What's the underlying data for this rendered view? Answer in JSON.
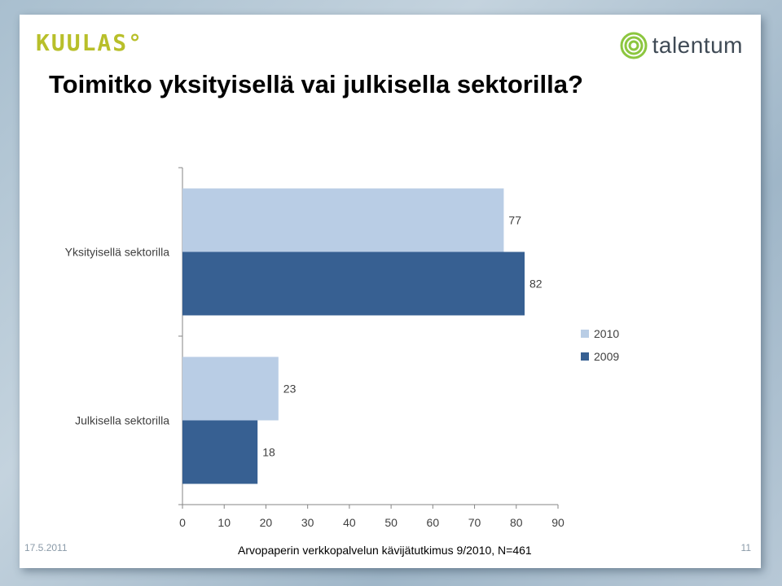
{
  "header": {
    "brand_left": "KUULAS°",
    "brand_right": "talentum"
  },
  "slide": {
    "title": "Toimitko yksityisellä vai julkisella sektorilla?"
  },
  "chart_data": {
    "type": "bar",
    "orientation": "horizontal",
    "categories": [
      "Yksityisellä sektorilla",
      "Julkisella sektorilla"
    ],
    "series": [
      {
        "name": "2010",
        "values": [
          77,
          23
        ],
        "color": "#b9cde5"
      },
      {
        "name": "2009",
        "values": [
          82,
          18
        ],
        "color": "#376092"
      }
    ],
    "xlim": [
      0,
      90
    ],
    "xticks": [
      0,
      10,
      20,
      30,
      40,
      50,
      60,
      70,
      80,
      90
    ],
    "grid": false,
    "legend_position": "right"
  },
  "footer": {
    "date": "17.5.2011",
    "source": "Arvopaperin verkkopalvelun kävijätutkimus 9/2010, N=461",
    "page": "11"
  }
}
